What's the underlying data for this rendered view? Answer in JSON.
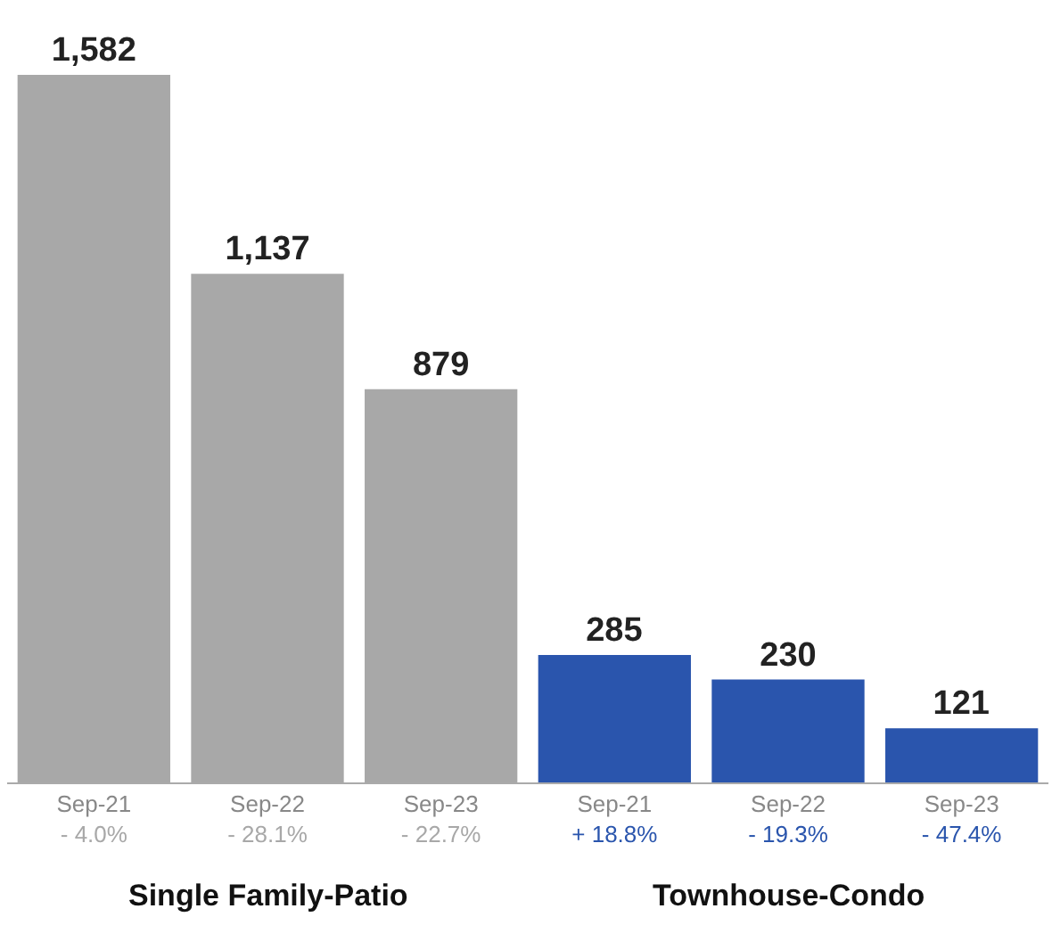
{
  "chart_data": {
    "type": "bar",
    "categories": [
      "Sep-21\n- 4.0%",
      "Sep-22\n- 28.1%",
      "Sep-23\n- 22.7%",
      "Sep-21\n+ 18.8%",
      "Sep-22\n- 19.3%",
      "Sep-23\n- 47.4%"
    ],
    "series": [
      {
        "color": "#a8a8a8",
        "values": [
          1582,
          1137,
          879,
          null,
          null,
          null
        ],
        "value_labels": [
          "1,582",
          "1,137",
          "879",
          null,
          null,
          null
        ]
      },
      {
        "color": "#2a55ad",
        "values": [
          null,
          null,
          null,
          285,
          230,
          121
        ]
      }
    ],
    "annotations": [
      "Single Family-Patio",
      "Townhouse-Condo"
    ],
    "data_labels": true,
    "legend": false,
    "grid": false
  }
}
